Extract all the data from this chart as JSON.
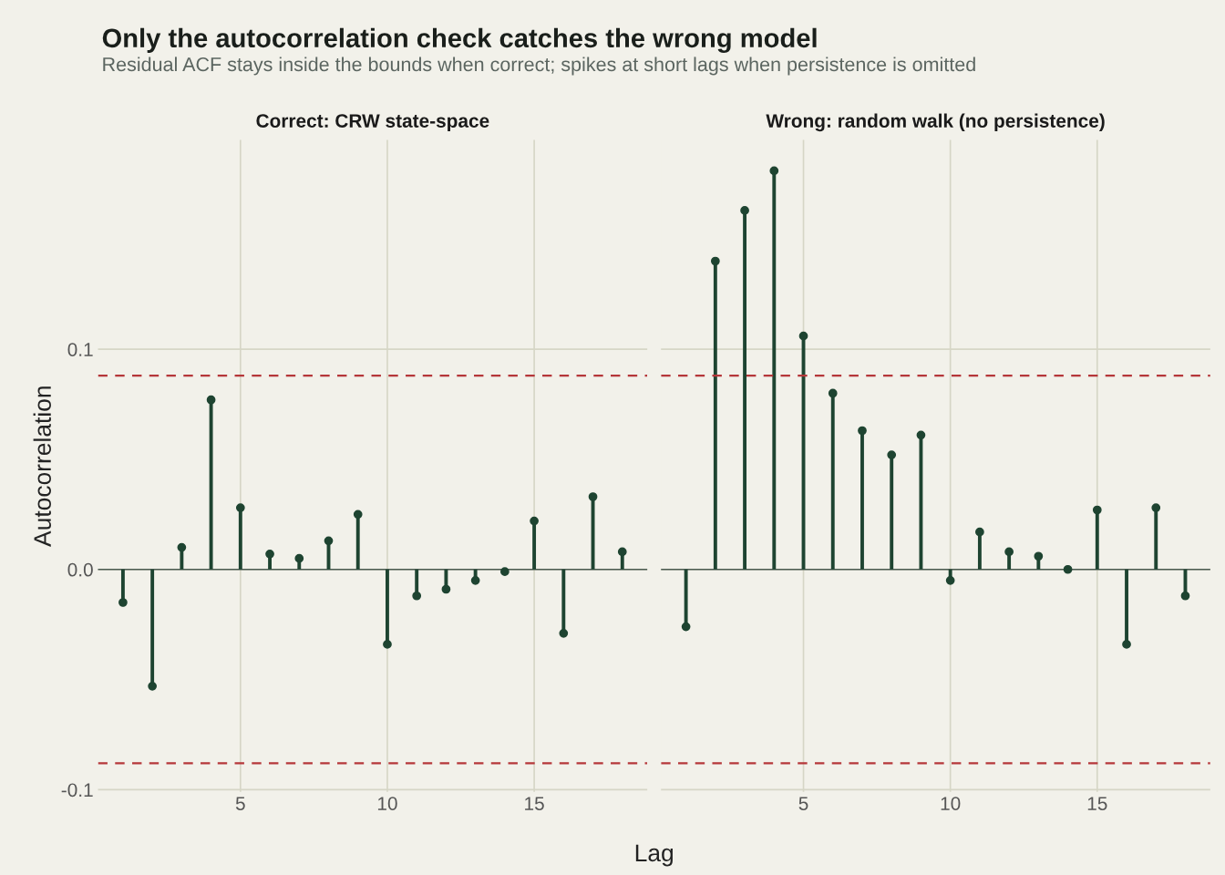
{
  "chart_data": [
    {
      "type": "lollipop",
      "title": "Correct: CRW state-space",
      "xlabel": "Lag",
      "ylabel": "Autocorrelation",
      "annotations": [
        "Only the autocorrelation check catches the wrong model",
        "Residual ACF stays inside the bounds when correct; spikes at short lags when persistence is omitted"
      ],
      "x": [
        1,
        2,
        3,
        4,
        5,
        6,
        7,
        8,
        9,
        10,
        11,
        12,
        13,
        14,
        15,
        16,
        17,
        18
      ],
      "series": [
        {
          "color": "#1e4431",
          "values": [
            -0.015,
            -0.053,
            0.01,
            0.077,
            0.028,
            0.007,
            0.005,
            0.013,
            0.025,
            -0.034,
            -0.012,
            -0.009,
            -0.005,
            -0.001,
            0.022,
            -0.029,
            0.033,
            0.008
          ]
        }
      ],
      "ref_lines": [
        {
          "axis": "y",
          "value": 0.088,
          "color": "#b5373a",
          "line_style": "dashed"
        },
        {
          "axis": "y",
          "value": -0.088,
          "color": "#b5373a",
          "line_style": "dashed"
        }
      ],
      "xlim": [
        0.15,
        18.85
      ],
      "xticks": [
        5,
        10,
        15
      ],
      "ylim": [
        -0.101,
        0.195
      ],
      "yticks": [
        {
          "value": -0.1,
          "label": "-0.1"
        },
        {
          "value": 0.0,
          "label": "0.0"
        },
        {
          "value": 0.1,
          "label": "0.1"
        }
      ],
      "grid": true,
      "marker": "circle"
    },
    {
      "type": "lollipop",
      "title": "Wrong: random walk (no persistence)",
      "x": [
        1,
        2,
        3,
        4,
        5,
        6,
        7,
        8,
        9,
        10,
        11,
        12,
        13,
        14,
        15,
        16,
        17,
        18
      ],
      "series": [
        {
          "color": "#1e4431",
          "values": [
            -0.026,
            0.14,
            0.163,
            0.181,
            0.106,
            0.08,
            0.063,
            0.052,
            0.061,
            -0.005,
            0.017,
            0.008,
            0.006,
            0.0,
            0.027,
            -0.034,
            0.028,
            -0.012
          ]
        }
      ],
      "ref_lines": [
        {
          "axis": "y",
          "value": 0.088,
          "color": "#b5373a",
          "line_style": "dashed"
        },
        {
          "axis": "y",
          "value": -0.088,
          "color": "#b5373a",
          "line_style": "dashed"
        }
      ],
      "xlim": [
        0.15,
        18.85
      ],
      "xticks": [
        5,
        10,
        15
      ],
      "ylim": [
        -0.101,
        0.195
      ],
      "yticks": [
        {
          "value": -0.1,
          "label": null
        },
        {
          "value": 0.0,
          "label": null
        },
        {
          "value": 0.1,
          "label": null
        }
      ],
      "grid": true,
      "marker": "circle",
      "tick_labels": "x"
    }
  ]
}
